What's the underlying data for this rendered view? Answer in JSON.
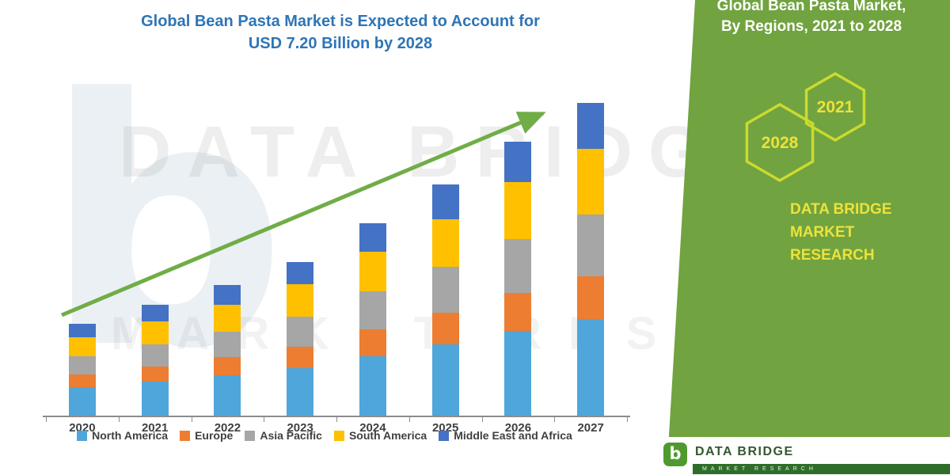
{
  "title": {
    "line1": "Global Bean Pasta Market is Expected to Account for",
    "line2": "USD 7.20 Billion by 2028"
  },
  "chart_data": {
    "type": "bar",
    "stacked": true,
    "title": "Global Bean Pasta Market is Expected to Account for USD 7.20 Billion by 2028",
    "categories": [
      "2020",
      "2021",
      "2022",
      "2023",
      "2024",
      "2025",
      "2026",
      "2027"
    ],
    "series": [
      {
        "name": "North America",
        "color": "#4FA6DA",
        "values": [
          0.6,
          0.72,
          0.85,
          1.0,
          1.25,
          1.5,
          1.78,
          2.03
        ]
      },
      {
        "name": "Europe",
        "color": "#ED7D31",
        "values": [
          0.27,
          0.32,
          0.38,
          0.45,
          0.56,
          0.67,
          0.8,
          0.91
        ]
      },
      {
        "name": "Asia Pacific",
        "color": "#A6A6A6",
        "values": [
          0.38,
          0.46,
          0.54,
          0.64,
          0.8,
          0.96,
          1.14,
          1.3
        ]
      },
      {
        "name": "South America",
        "color": "#FFC000",
        "values": [
          0.4,
          0.48,
          0.57,
          0.67,
          0.84,
          1.01,
          1.2,
          1.37
        ]
      },
      {
        "name": "Middle East and Africa",
        "color": "#4472C4",
        "values": [
          0.29,
          0.35,
          0.41,
          0.48,
          0.6,
          0.72,
          0.85,
          0.98
        ]
      }
    ],
    "ylim": [
      0,
      7
    ],
    "gridlines": false,
    "legend_position": "bottom",
    "annotations": [
      "upward green trend arrow from 2020 to 2027"
    ]
  },
  "side_panel": {
    "title_line1": "Global Bean Pasta Market,",
    "title_line2": "By Regions, 2021 to 2028",
    "hexagon_years": [
      "2028",
      "2021"
    ],
    "brand_line1": "DATA BRIDGE MARKET",
    "brand_line2": "RESEARCH",
    "panel_color": "#71A340",
    "hexagon_stroke_color": "#CBDB2E",
    "accent_text_color": "#EDE23B"
  },
  "watermark": {
    "logo_letter": "b",
    "line1": "DATA BRIDGE",
    "line2": "MARKET RESEARCH"
  },
  "footer": {
    "logo_letter": "b",
    "brand": "DATA BRIDGE",
    "sub_brand": "MARKET RESEARCH"
  },
  "colors": {
    "title_blue": "#2E75B6",
    "arrow_green": "#70AD47",
    "axis_gray": "#8c8c8c"
  }
}
